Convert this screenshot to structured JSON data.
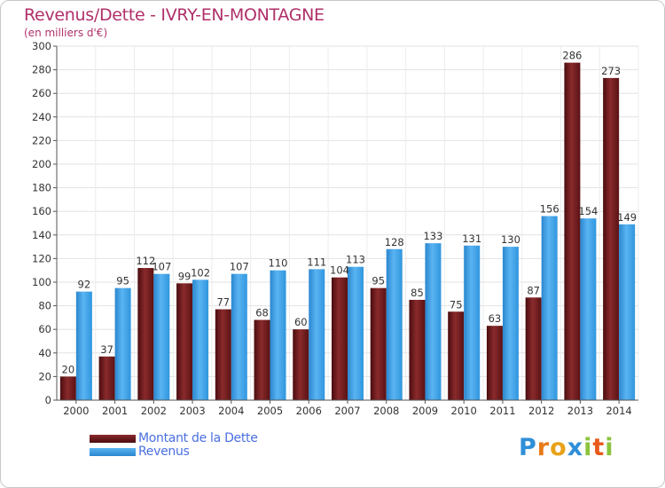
{
  "header": {
    "title": "Revenus/Dette - IVRY-EN-MONTAGNE",
    "subtitle": "(en milliers d'€)"
  },
  "colors": {
    "dette": "#6e1a1d",
    "revenus": "#3a9ee6",
    "title": "#b0306a",
    "legend_text": "#4a6fe0",
    "grid": "#e2e2e2"
  },
  "chart_data": {
    "type": "bar",
    "title": "Revenus/Dette - IVRY-EN-MONTAGNE",
    "subtitle": "(en milliers d'€)",
    "categories": [
      "2000",
      "2001",
      "2002",
      "2003",
      "2004",
      "2005",
      "2006",
      "2007",
      "2008",
      "2009",
      "2010",
      "2011",
      "2012",
      "2013",
      "2014"
    ],
    "series": [
      {
        "name": "Montant de la Dette",
        "values": [
          20,
          37,
          112,
          99,
          77,
          68,
          60,
          104,
          95,
          85,
          75,
          63,
          87,
          286,
          273
        ]
      },
      {
        "name": "Revenus",
        "values": [
          92,
          95,
          107,
          102,
          107,
          110,
          111,
          113,
          128,
          133,
          131,
          130,
          156,
          154,
          149
        ]
      }
    ],
    "ylim": [
      0,
      300
    ],
    "ytick_step": 20,
    "grid": true,
    "legend_position": "bottom-left"
  },
  "legend": {
    "items": [
      {
        "label": "Montant de la Dette"
      },
      {
        "label": "Revenus"
      }
    ]
  },
  "logo": {
    "letters": [
      "P",
      "r",
      "o",
      "x",
      "i",
      "t",
      "i"
    ],
    "letter_colors": [
      "#2f8fd8",
      "#e87a1a",
      "#e8a21a",
      "#2f8fd8",
      "#8cc43c",
      "#e85a1a",
      "#8cc43c"
    ]
  }
}
